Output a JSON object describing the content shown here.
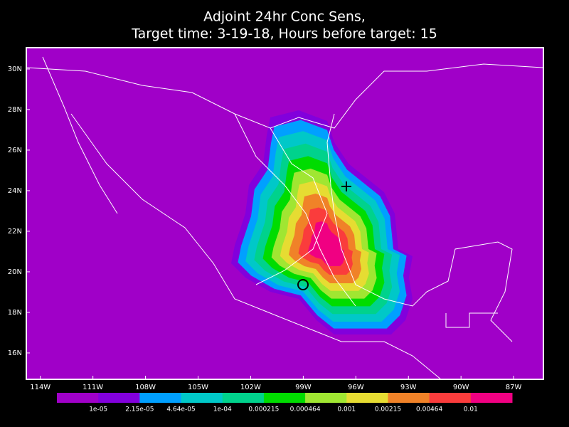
{
  "header": {
    "title": "Adjoint 24hr Conc Sens,",
    "subtitle": "Target time: 3-19-18, Hours before target: 15"
  },
  "map": {
    "background_color": "#a000c8",
    "lon_range": [
      -114.8,
      -85.3
    ],
    "lat_range": [
      14.7,
      31.05
    ],
    "lat_ticks": [
      {
        "value": 30,
        "label": "30N"
      },
      {
        "value": 28,
        "label": "28N"
      },
      {
        "value": 26,
        "label": "26N"
      },
      {
        "value": 24,
        "label": "24N"
      },
      {
        "value": 22,
        "label": "22N"
      },
      {
        "value": 20,
        "label": "20N"
      },
      {
        "value": 18,
        "label": "18N"
      },
      {
        "value": 16,
        "label": "16N"
      }
    ],
    "lon_ticks": [
      {
        "value": -114,
        "label": "114W"
      },
      {
        "value": -111,
        "label": "111W"
      },
      {
        "value": -108,
        "label": "108W"
      },
      {
        "value": -105,
        "label": "105W"
      },
      {
        "value": -102,
        "label": "102W"
      },
      {
        "value": -99,
        "label": "99W"
      },
      {
        "value": -96,
        "label": "96W"
      },
      {
        "value": -93,
        "label": "93W"
      },
      {
        "value": -90,
        "label": "90W"
      },
      {
        "value": -87,
        "label": "87W"
      }
    ]
  },
  "colorbar": {
    "colors": [
      "#a000c8",
      "#8200dc",
      "#00a0ff",
      "#00c8c8",
      "#00d28c",
      "#00dc00",
      "#a0e632",
      "#e6dc32",
      "#f08228",
      "#fa3c3c",
      "#f00082"
    ],
    "labels": [
      "1e-05",
      "2.15e-05",
      "4.64e-05",
      "1e-04",
      "0.000215",
      "0.000464",
      "0.001",
      "0.00215",
      "0.00464",
      "0.01"
    ]
  }
}
